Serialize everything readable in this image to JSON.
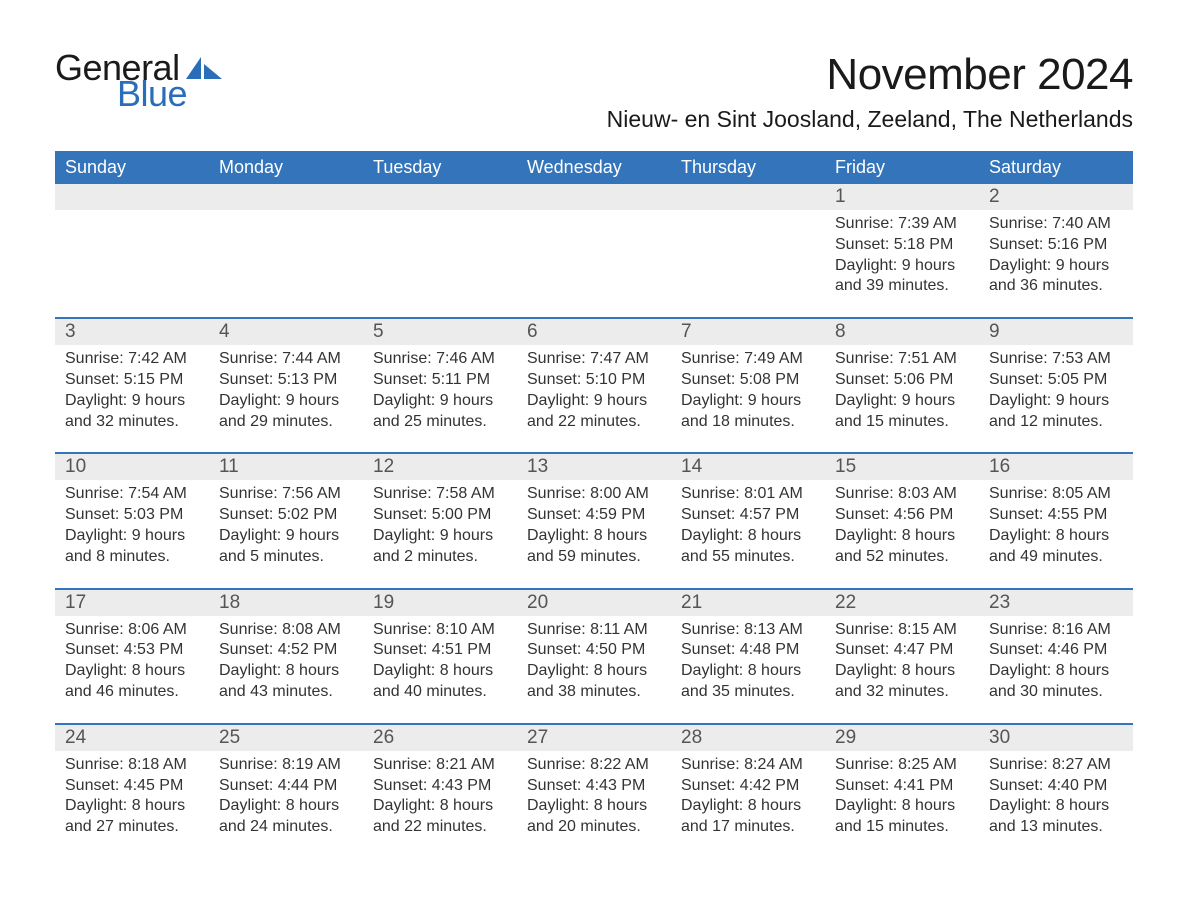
{
  "logo": {
    "text1": "General",
    "text2": "Blue",
    "accent_color": "#2a6db8"
  },
  "title": "November 2024",
  "location": "Nieuw- en Sint Joosland, Zeeland, The Netherlands",
  "header_bg": "#3374bb",
  "header_fg": "#ffffff",
  "daynum_bg": "#ececec",
  "text_color": "#333333",
  "day_names": [
    "Sunday",
    "Monday",
    "Tuesday",
    "Wednesday",
    "Thursday",
    "Friday",
    "Saturday"
  ],
  "weeks": [
    [
      null,
      null,
      null,
      null,
      null,
      {
        "n": "1",
        "sunrise": "7:39 AM",
        "sunset": "5:18 PM",
        "daylight_h": "9",
        "daylight_m": "39"
      },
      {
        "n": "2",
        "sunrise": "7:40 AM",
        "sunset": "5:16 PM",
        "daylight_h": "9",
        "daylight_m": "36"
      }
    ],
    [
      {
        "n": "3",
        "sunrise": "7:42 AM",
        "sunset": "5:15 PM",
        "daylight_h": "9",
        "daylight_m": "32"
      },
      {
        "n": "4",
        "sunrise": "7:44 AM",
        "sunset": "5:13 PM",
        "daylight_h": "9",
        "daylight_m": "29"
      },
      {
        "n": "5",
        "sunrise": "7:46 AM",
        "sunset": "5:11 PM",
        "daylight_h": "9",
        "daylight_m": "25"
      },
      {
        "n": "6",
        "sunrise": "7:47 AM",
        "sunset": "5:10 PM",
        "daylight_h": "9",
        "daylight_m": "22"
      },
      {
        "n": "7",
        "sunrise": "7:49 AM",
        "sunset": "5:08 PM",
        "daylight_h": "9",
        "daylight_m": "18"
      },
      {
        "n": "8",
        "sunrise": "7:51 AM",
        "sunset": "5:06 PM",
        "daylight_h": "9",
        "daylight_m": "15"
      },
      {
        "n": "9",
        "sunrise": "7:53 AM",
        "sunset": "5:05 PM",
        "daylight_h": "9",
        "daylight_m": "12"
      }
    ],
    [
      {
        "n": "10",
        "sunrise": "7:54 AM",
        "sunset": "5:03 PM",
        "daylight_h": "9",
        "daylight_m": "8"
      },
      {
        "n": "11",
        "sunrise": "7:56 AM",
        "sunset": "5:02 PM",
        "daylight_h": "9",
        "daylight_m": "5"
      },
      {
        "n": "12",
        "sunrise": "7:58 AM",
        "sunset": "5:00 PM",
        "daylight_h": "9",
        "daylight_m": "2"
      },
      {
        "n": "13",
        "sunrise": "8:00 AM",
        "sunset": "4:59 PM",
        "daylight_h": "8",
        "daylight_m": "59"
      },
      {
        "n": "14",
        "sunrise": "8:01 AM",
        "sunset": "4:57 PM",
        "daylight_h": "8",
        "daylight_m": "55"
      },
      {
        "n": "15",
        "sunrise": "8:03 AM",
        "sunset": "4:56 PM",
        "daylight_h": "8",
        "daylight_m": "52"
      },
      {
        "n": "16",
        "sunrise": "8:05 AM",
        "sunset": "4:55 PM",
        "daylight_h": "8",
        "daylight_m": "49"
      }
    ],
    [
      {
        "n": "17",
        "sunrise": "8:06 AM",
        "sunset": "4:53 PM",
        "daylight_h": "8",
        "daylight_m": "46"
      },
      {
        "n": "18",
        "sunrise": "8:08 AM",
        "sunset": "4:52 PM",
        "daylight_h": "8",
        "daylight_m": "43"
      },
      {
        "n": "19",
        "sunrise": "8:10 AM",
        "sunset": "4:51 PM",
        "daylight_h": "8",
        "daylight_m": "40"
      },
      {
        "n": "20",
        "sunrise": "8:11 AM",
        "sunset": "4:50 PM",
        "daylight_h": "8",
        "daylight_m": "38"
      },
      {
        "n": "21",
        "sunrise": "8:13 AM",
        "sunset": "4:48 PM",
        "daylight_h": "8",
        "daylight_m": "35"
      },
      {
        "n": "22",
        "sunrise": "8:15 AM",
        "sunset": "4:47 PM",
        "daylight_h": "8",
        "daylight_m": "32"
      },
      {
        "n": "23",
        "sunrise": "8:16 AM",
        "sunset": "4:46 PM",
        "daylight_h": "8",
        "daylight_m": "30"
      }
    ],
    [
      {
        "n": "24",
        "sunrise": "8:18 AM",
        "sunset": "4:45 PM",
        "daylight_h": "8",
        "daylight_m": "27"
      },
      {
        "n": "25",
        "sunrise": "8:19 AM",
        "sunset": "4:44 PM",
        "daylight_h": "8",
        "daylight_m": "24"
      },
      {
        "n": "26",
        "sunrise": "8:21 AM",
        "sunset": "4:43 PM",
        "daylight_h": "8",
        "daylight_m": "22"
      },
      {
        "n": "27",
        "sunrise": "8:22 AM",
        "sunset": "4:43 PM",
        "daylight_h": "8",
        "daylight_m": "20"
      },
      {
        "n": "28",
        "sunrise": "8:24 AM",
        "sunset": "4:42 PM",
        "daylight_h": "8",
        "daylight_m": "17"
      },
      {
        "n": "29",
        "sunrise": "8:25 AM",
        "sunset": "4:41 PM",
        "daylight_h": "8",
        "daylight_m": "15"
      },
      {
        "n": "30",
        "sunrise": "8:27 AM",
        "sunset": "4:40 PM",
        "daylight_h": "8",
        "daylight_m": "13"
      }
    ]
  ],
  "labels": {
    "sunrise": "Sunrise:",
    "sunset": "Sunset:",
    "daylight": "Daylight:",
    "hours": "hours",
    "and": "and",
    "minutes": "minutes."
  },
  "fonts": {
    "title_pt": 44,
    "location_pt": 23,
    "dayhead_pt": 18,
    "daynum_pt": 19,
    "body_pt": 16
  }
}
